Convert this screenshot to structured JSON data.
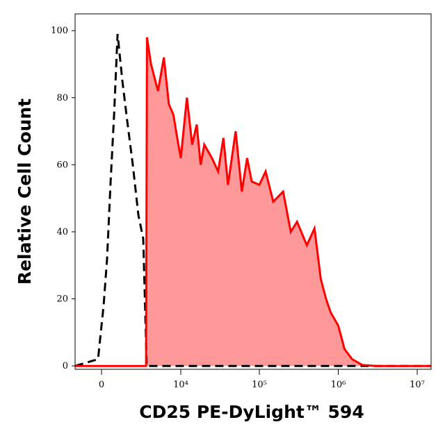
{
  "chart_data": {
    "type": "histogram",
    "xlabel": "CD25 PE-DyLight™ 594",
    "ylabel": "Relative Cell Count",
    "xscale": "arcsinh",
    "xlim": [
      -1700,
      15000000
    ],
    "ylim": [
      -1,
      105
    ],
    "xticks": [
      0,
      {
        "value": 10000,
        "label": "10⁴"
      },
      {
        "value": 100000,
        "label": "10⁵"
      },
      {
        "value": 1000000,
        "label": "10⁶"
      },
      {
        "value": 10000000,
        "label": "10⁷"
      }
    ],
    "yticks": [
      0,
      20,
      40,
      60,
      80,
      100
    ],
    "series": [
      {
        "color": "#000000",
        "style": "dashed",
        "filled": false,
        "x": [
          -1700,
          -202,
          -83,
          120,
          324,
          536,
          749,
          969,
          1293,
          1646,
          2087,
          2590,
          3084,
          3473,
          15000000
        ],
        "values": [
          0,
          2,
          8,
          18,
          32,
          55,
          75,
          99,
          85,
          73,
          60,
          45,
          38,
          0,
          0
        ]
      },
      {
        "color": "#ff0000",
        "fill": "#ff9999",
        "style": "solid",
        "filled": true,
        "x": [
          -1700,
          3400,
          3500,
          4000,
          5000,
          6000,
          7000,
          8000,
          9000,
          10000,
          12000,
          14000,
          16000,
          18000,
          20000,
          25000,
          30000,
          35000,
          40000,
          50000,
          60000,
          70000,
          80000,
          100000,
          120000,
          150000,
          200000,
          250000,
          300000,
          400000,
          500000,
          600000,
          700000,
          800000,
          1000000,
          1200000,
          1500000,
          2000000,
          3000000,
          15000000
        ],
        "values": [
          0,
          0,
          98,
          90,
          82,
          92,
          78,
          75,
          68,
          62,
          80,
          66,
          72,
          60,
          66,
          62,
          58,
          68,
          54,
          70,
          52,
          62,
          55,
          54,
          58,
          49,
          52,
          40,
          43,
          36,
          41,
          26,
          20,
          16,
          12,
          5,
          2,
          0.3,
          0,
          0
        ]
      }
    ]
  }
}
